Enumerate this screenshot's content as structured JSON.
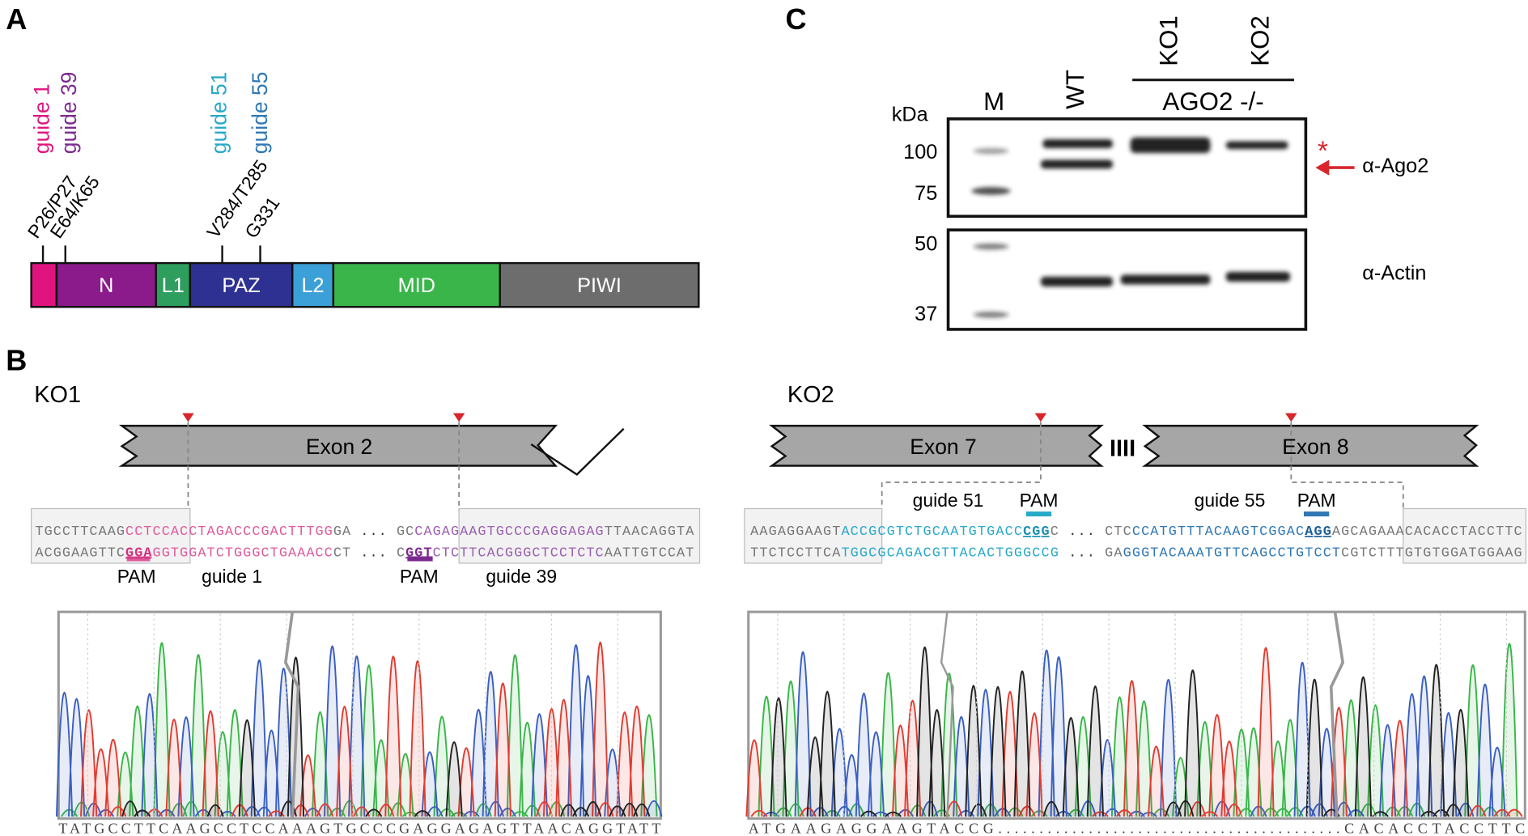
{
  "panel_a": {
    "label": "A",
    "guides": [
      {
        "text": "guide 1",
        "color": "#e0147e"
      },
      {
        "text": "guide 39",
        "color": "#7b2a8e"
      },
      {
        "text": "guide 51",
        "color": "#27a9c8"
      },
      {
        "text": "guide 55",
        "color": "#2f78b5"
      }
    ],
    "sites": [
      "P26/P27",
      "E64/K65",
      "V284/T285",
      "G331"
    ],
    "domains": [
      {
        "name": "N",
        "color": "#8b1a8b"
      },
      {
        "name": "L1",
        "color": "#2e9e5e"
      },
      {
        "name": "PAZ",
        "color": "#2e3192"
      },
      {
        "name": "L2",
        "color": "#3ca0d8"
      },
      {
        "name": "MID",
        "color": "#3ab54a"
      },
      {
        "name": "PIWI",
        "color": "#6d6d6d"
      }
    ]
  },
  "panel_c": {
    "label": "C",
    "kda": "kDa",
    "markers": [
      "100",
      "75",
      "50",
      "37"
    ],
    "lanes": [
      "M",
      "WT",
      "KO1",
      "KO2"
    ],
    "group": "AGO2 -/-",
    "asterisk": "*",
    "antibodies": [
      "α-Ago2",
      "α-Actin"
    ]
  },
  "panel_b": {
    "label": "B",
    "ko1": {
      "title": "KO1",
      "exon": "Exon 2",
      "seq_top": [
        {
          "text": "TGCCTTCAAG",
          "color": "#777"
        },
        {
          "text": "CCTCCACCTAGACCCGACTTTGG",
          "color": "#e05a9a"
        },
        {
          "text": "GA",
          "color": "#777"
        },
        {
          "text": " ... ",
          "color": "#333"
        },
        {
          "text": "GC",
          "color": "#777"
        },
        {
          "text": "CAGAGAAGTGCCCGAGGAGAG",
          "color": "#9b5fb0"
        },
        {
          "text": "TTAACAGGTA",
          "color": "#777"
        }
      ],
      "seq_bottom": [
        {
          "text": "ACGGAAGTTC",
          "color": "#777"
        },
        {
          "text": "GGA",
          "color": "#d0307e"
        },
        {
          "text": "GGTGGATCTGGGCTGAAACC",
          "color": "#e05a9a"
        },
        {
          "text": "CT",
          "color": "#777"
        },
        {
          "text": " ... ",
          "color": "#333"
        },
        {
          "text": "C",
          "color": "#777"
        },
        {
          "text": "GGT",
          "color": "#7b2a8e"
        },
        {
          "text": "CTCTTCACGGGCTCCTCTC",
          "color": "#9b5fb0"
        },
        {
          "text": "AATTGTCCAT",
          "color": "#777"
        }
      ],
      "pam": [
        "PAM",
        "PAM"
      ],
      "guides": [
        "guide 1",
        "guide 39"
      ],
      "read": "TATGCCTTCAAGCCTCCAAAGTGCCCGAGGAGAGTTAACAGGTATT"
    },
    "ko2": {
      "title": "KO2",
      "exons": [
        "Exon 7",
        "Exon 8"
      ],
      "break": "IIII",
      "seq_top": [
        {
          "text": "AAGAGGAAGT",
          "color": "#777"
        },
        {
          "text": "ACCGCGTCTGCAATGTGACC",
          "color": "#27a9c8"
        },
        {
          "text": "CGG",
          "color": "#1a8fb0"
        },
        {
          "text": "C",
          "color": "#777"
        },
        {
          "text": " ... ",
          "color": "#333"
        },
        {
          "text": "CTC",
          "color": "#777"
        },
        {
          "text": "CCATGTTTACAAGTCGGAC",
          "color": "#2f78b5"
        },
        {
          "text": "AGG",
          "color": "#1f5f9a"
        },
        {
          "text": "AGCAGAAACACACCTACCTTC",
          "color": "#777"
        }
      ],
      "seq_bottom": [
        {
          "text": "TTCTCCTTCA",
          "color": "#777"
        },
        {
          "text": "TGGCGCAGACGTTACACTGGGCCG",
          "color": "#27a9c8"
        },
        {
          "text": " ... ",
          "color": "#333"
        },
        {
          "text": "GA",
          "color": "#777"
        },
        {
          "text": "GGGTACAAATGTTCAGCCTGTCCT",
          "color": "#2f78b5"
        },
        {
          "text": "CGTCTTTGTGTGGATGGAAG",
          "color": "#777"
        }
      ],
      "pam": [
        "PAM",
        "PAM"
      ],
      "guides": [
        "guide 51",
        "guide 55"
      ],
      "read": [
        "ATGAAGAGGAAGTACCG",
        "..........................................",
        "CACACCTACCTTC"
      ]
    }
  }
}
